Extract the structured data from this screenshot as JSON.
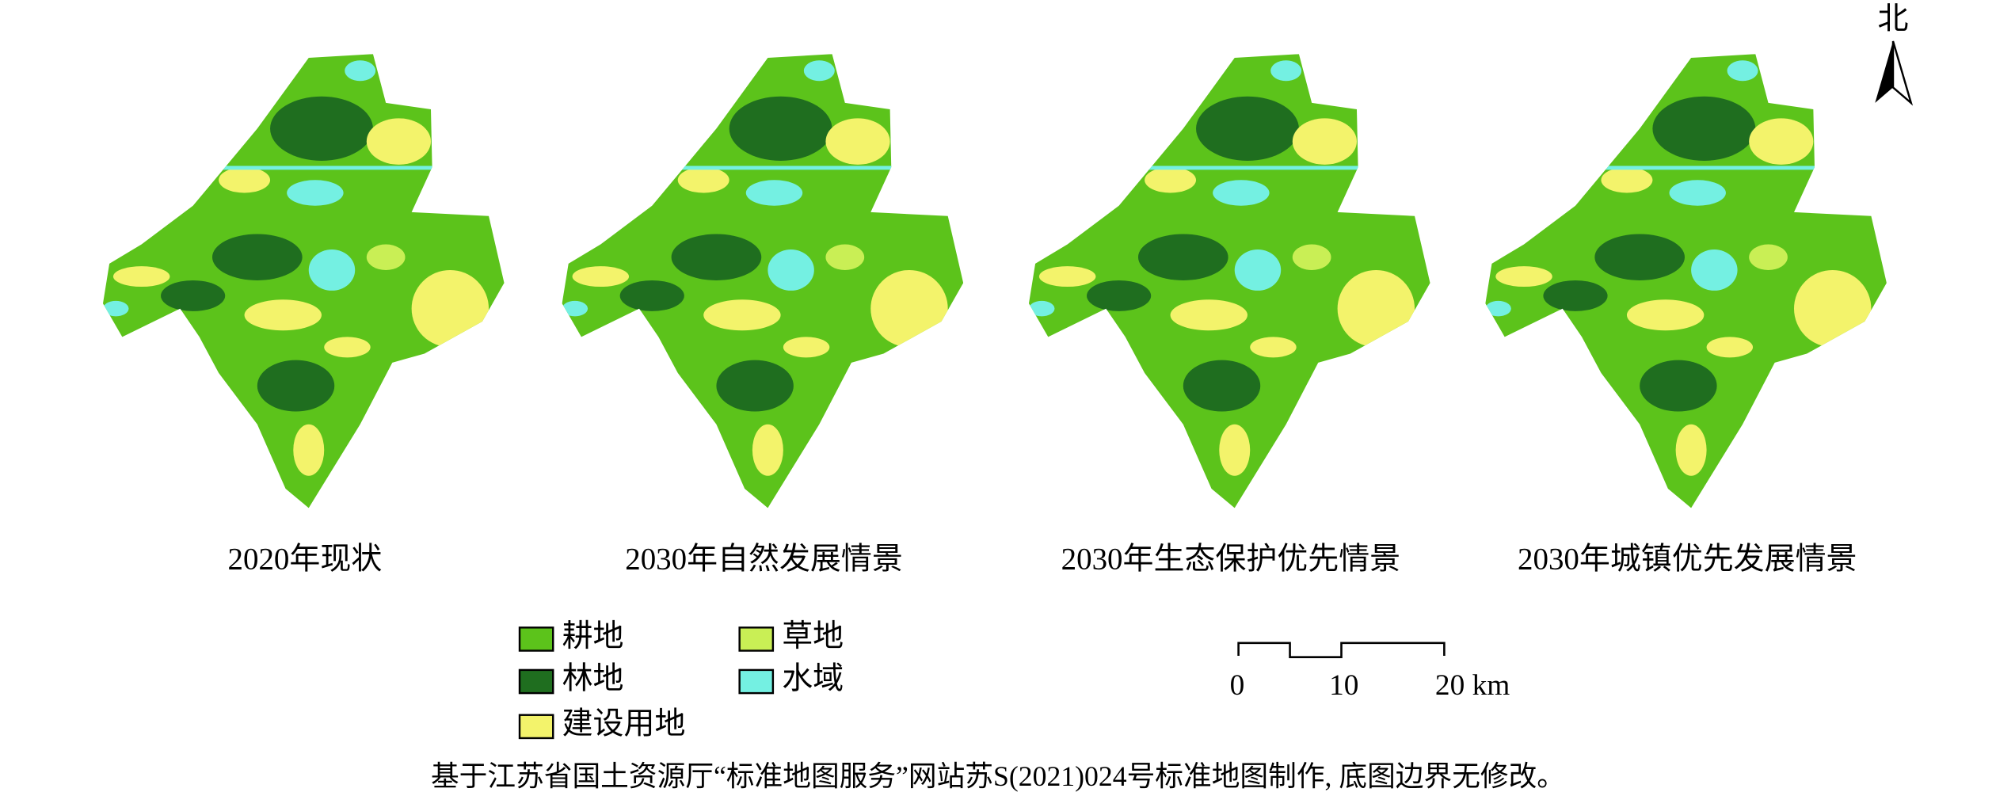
{
  "north_label": "北",
  "maps": [
    {
      "caption": "2020年现状"
    },
    {
      "caption": "2030年自然发展情景"
    },
    {
      "caption": "2030年生态保护优先情景"
    },
    {
      "caption": "2030年城镇优先发展情景"
    }
  ],
  "legend": [
    {
      "label": "耕地",
      "color": "#5cc31b"
    },
    {
      "label": "林地",
      "color": "#1f6e1f"
    },
    {
      "label": "建设用地",
      "color": "#f3f36b"
    },
    {
      "label": "草地",
      "color": "#c9ef55"
    },
    {
      "label": "水域",
      "color": "#74f0e2"
    }
  ],
  "scale_bar": {
    "labels": [
      "0",
      "10",
      "20 km"
    ]
  },
  "note": "基于江苏省国土资源厅“标准地图服务”网站苏S(2021)024号标准地图制作, 底图边界无修改。"
}
